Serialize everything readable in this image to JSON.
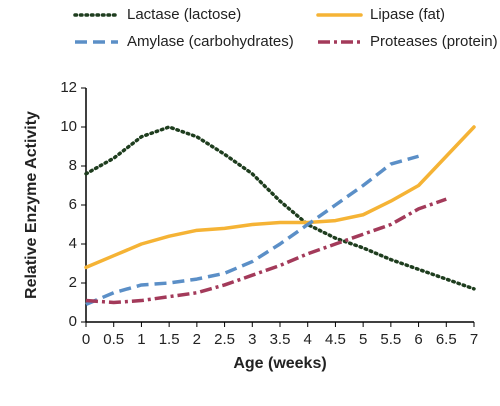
{
  "chart_data": {
    "type": "line",
    "xlabel": "Age (weeks)",
    "ylabel": "Relative Enzyme Activity",
    "x": [
      0,
      0.5,
      1,
      1.5,
      2,
      2.5,
      3,
      3.5,
      4,
      4.5,
      5,
      5.5,
      6,
      6.5,
      7
    ],
    "series": [
      {
        "name": "Lactase (lactose)",
        "color": "#1e3d1e",
        "style": "dotted",
        "values": [
          7.6,
          8.4,
          9.5,
          10.0,
          9.5,
          8.6,
          7.6,
          6.2,
          5.0,
          4.3,
          3.8,
          3.2,
          2.7,
          2.2,
          1.7
        ]
      },
      {
        "name": "Lipase (fat)",
        "color": "#f5b335",
        "style": "solid",
        "values": [
          2.8,
          3.4,
          4.0,
          4.4,
          4.7,
          4.8,
          5.0,
          5.1,
          5.1,
          5.2,
          5.5,
          6.2,
          7.0,
          8.5,
          10.0
        ]
      },
      {
        "name": "Amylase (carbohydrates)",
        "color": "#5b8fc7",
        "style": "dashed",
        "values": [
          0.9,
          1.5,
          1.9,
          2.0,
          2.2,
          2.5,
          3.1,
          4.0,
          5.0,
          6.0,
          7.0,
          8.1,
          8.5,
          null,
          null
        ]
      },
      {
        "name": "Proteases (protein)",
        "color": "#a33a5a",
        "style": "dashdot",
        "values": [
          1.1,
          1.0,
          1.1,
          1.3,
          1.5,
          1.9,
          2.4,
          2.9,
          3.5,
          4.0,
          4.5,
          5.0,
          5.8,
          6.3,
          null
        ]
      }
    ],
    "xlim": [
      0,
      7
    ],
    "xticks": [
      0,
      0.5,
      1,
      1.5,
      2,
      2.5,
      3,
      3.5,
      4,
      4.5,
      5,
      5.5,
      6,
      6.5,
      7
    ],
    "ylim": [
      0,
      12
    ],
    "yticks": [
      0,
      2,
      4,
      6,
      8,
      10,
      12
    ],
    "grid": false,
    "legend": "top"
  }
}
